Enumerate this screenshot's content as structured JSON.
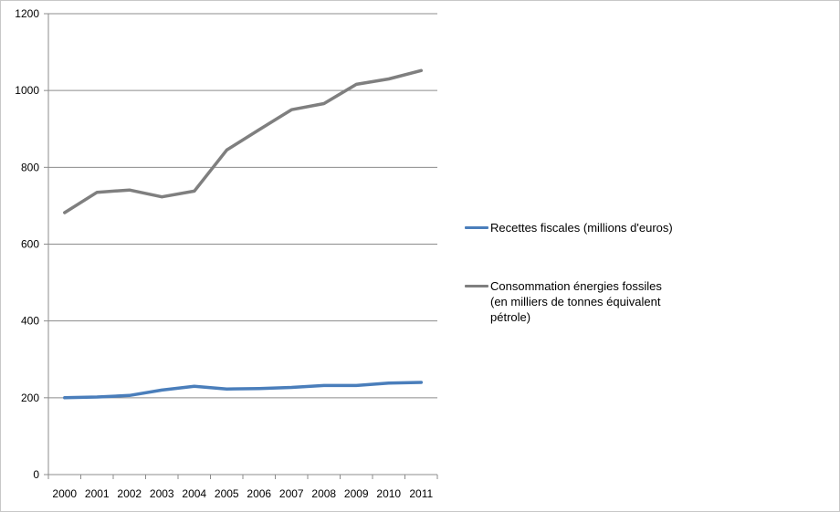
{
  "chart_data": {
    "type": "line",
    "title": "",
    "xlabel": "",
    "ylabel": "",
    "categories": [
      "2000",
      "2001",
      "2002",
      "2003",
      "2004",
      "2005",
      "2006",
      "2007",
      "2008",
      "2009",
      "2010",
      "2011"
    ],
    "ylim": [
      0,
      1200
    ],
    "yticks": [
      0,
      200,
      400,
      600,
      800,
      1000,
      1200
    ],
    "grid": "horizontal",
    "legend_position": "right",
    "series": [
      {
        "name": "Recettes fiscales (millions d'euros)",
        "color": "#4a7ebb",
        "values": [
          200,
          202,
          206,
          220,
          230,
          223,
          224,
          227,
          232,
          232,
          238,
          240
        ]
      },
      {
        "name": "Consommation énergies fossiles\n(en milliers de tonnes équivalent\npétrole)",
        "color": "#7f7f7f",
        "values": [
          682,
          735,
          741,
          723,
          738,
          845,
          898,
          950,
          966,
          1016,
          1030,
          1052
        ]
      }
    ]
  }
}
